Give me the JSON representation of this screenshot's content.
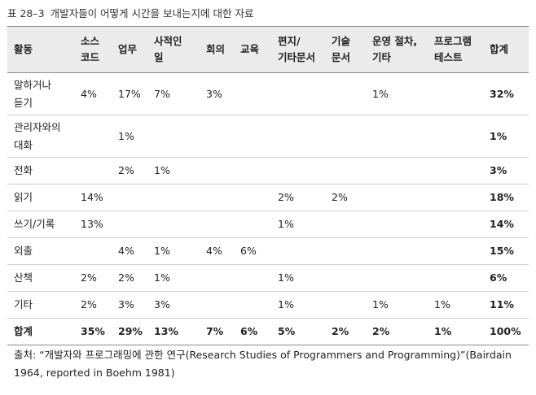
{
  "caption": {
    "label": "표 28–3",
    "text": "개발자들이 어떻게 시간을 보내는지에 대한 자료"
  },
  "table": {
    "headers": [
      [
        "활동"
      ],
      [
        "소스",
        "코드"
      ],
      [
        "업무"
      ],
      [
        "사적인",
        "일"
      ],
      [
        "회의"
      ],
      [
        "교육"
      ],
      [
        "편지/",
        "기타문서"
      ],
      [
        "기술",
        "문서"
      ],
      [
        "운영 절차,",
        "기타"
      ],
      [
        "프로그램",
        "테스트"
      ],
      [
        "합계"
      ]
    ],
    "rows": [
      {
        "activity": [
          "말하거나",
          "듣기"
        ],
        "cells": [
          "4%",
          "17%",
          "7%",
          "3%",
          "",
          "",
          "",
          "1%",
          ""
        ],
        "total": "32%"
      },
      {
        "activity": [
          "관리자와의",
          "대화"
        ],
        "cells": [
          "",
          "1%",
          "",
          "",
          "",
          "",
          "",
          "",
          ""
        ],
        "total": "1%"
      },
      {
        "activity": [
          "전화"
        ],
        "cells": [
          "",
          "2%",
          "1%",
          "",
          "",
          "",
          "",
          "",
          ""
        ],
        "total": "3%"
      },
      {
        "activity": [
          "읽기"
        ],
        "cells": [
          "14%",
          "",
          "",
          "",
          "",
          "2%",
          "2%",
          "",
          ""
        ],
        "total": "18%"
      },
      {
        "activity": [
          "쓰기/기록"
        ],
        "cells": [
          "13%",
          "",
          "",
          "",
          "",
          "1%",
          "",
          "",
          ""
        ],
        "total": "14%"
      },
      {
        "activity": [
          "외출"
        ],
        "cells": [
          "",
          "4%",
          "1%",
          "4%",
          "6%",
          "",
          "",
          "",
          ""
        ],
        "total": "15%"
      },
      {
        "activity": [
          "산책"
        ],
        "cells": [
          "2%",
          "2%",
          "1%",
          "",
          "",
          "1%",
          "",
          "",
          ""
        ],
        "total": "6%"
      },
      {
        "activity": [
          "기타"
        ],
        "cells": [
          "2%",
          "3%",
          "3%",
          "",
          "",
          "1%",
          "",
          "1%",
          "1%"
        ],
        "total": "11%"
      }
    ],
    "sum_row": {
      "activity": [
        "합계"
      ],
      "cells": [
        "35%",
        "29%",
        "13%",
        "7%",
        "6%",
        "5%",
        "2%",
        "2%",
        "1%"
      ],
      "total": "100%"
    }
  },
  "source": "출처: “개발자와 프로그래밍에 관한 연구(Research Studies of Programmers and Programming)”(Bairdain 1964, reported in Boehm 1981)"
}
